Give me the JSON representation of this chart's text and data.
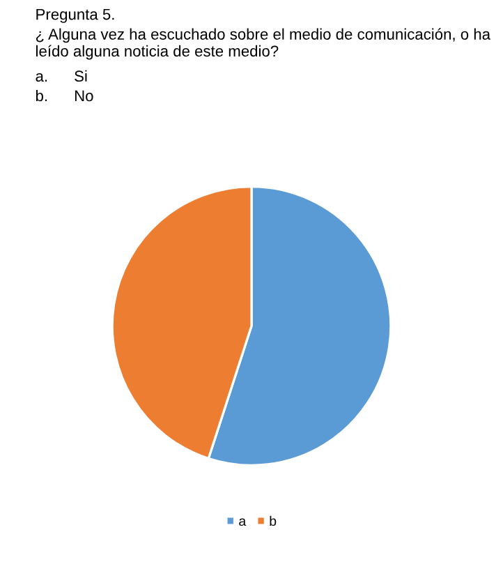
{
  "chart_data": {
    "type": "pie",
    "title": "Pregunta 5.",
    "subtitle": "¿ Alguna vez ha escuchado sobre el medio de comunicación, o ha leído alguna noticia de este medio?",
    "annotations": [
      "a.      Si",
      "b.      No"
    ],
    "categories": [
      "a",
      "b"
    ],
    "values": [
      55,
      45
    ],
    "colors": [
      "#5b9bd5",
      "#ed7d31"
    ],
    "legend": "bottom"
  }
}
